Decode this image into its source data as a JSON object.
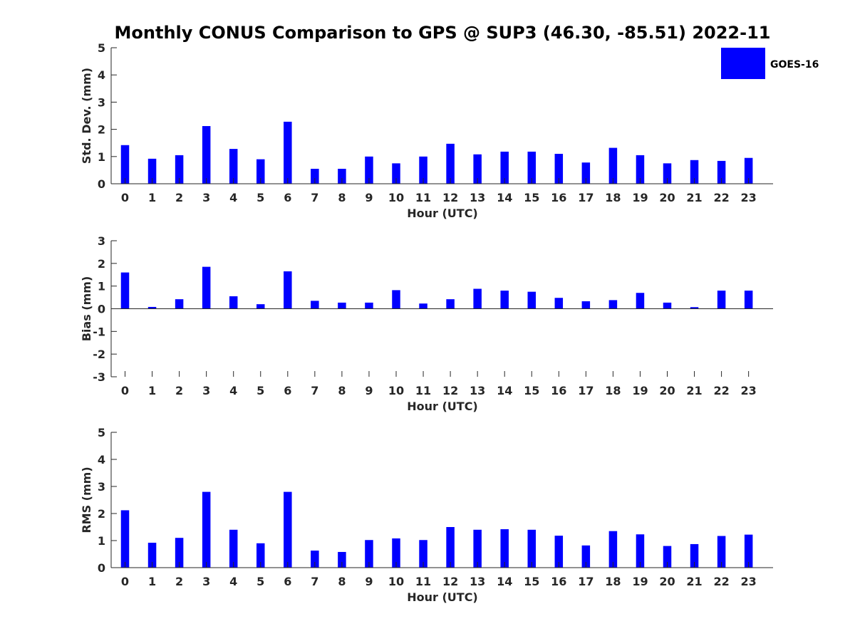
{
  "title": "Monthly CONUS Comparison to GPS @ SUP3 (46.30, -85.51) 2022-11",
  "bar_color": "#0000ff",
  "legend": {
    "label": "GOES-16",
    "placement": "top-right"
  },
  "chart_data": [
    {
      "type": "bar",
      "xlabel": "Hour (UTC)",
      "ylabel": "Std. Dev. (mm)",
      "ylim": [
        0,
        5
      ],
      "yticks": [
        "0",
        "1",
        "2",
        "3",
        "4",
        "5"
      ],
      "categories": [
        "0",
        "1",
        "2",
        "3",
        "4",
        "5",
        "6",
        "7",
        "8",
        "9",
        "10",
        "11",
        "12",
        "13",
        "14",
        "15",
        "16",
        "17",
        "18",
        "19",
        "20",
        "21",
        "22",
        "23"
      ],
      "series": [
        {
          "name": "GOES-16",
          "values": [
            1.42,
            0.92,
            1.05,
            2.12,
            1.28,
            0.9,
            2.28,
            0.55,
            0.55,
            1.0,
            0.75,
            1.0,
            1.47,
            1.08,
            1.18,
            1.18,
            1.1,
            0.78,
            1.32,
            1.05,
            0.75,
            0.87,
            0.84,
            0.95
          ]
        }
      ]
    },
    {
      "type": "bar",
      "xlabel": "Hour (UTC)",
      "ylabel": "Bias (mm)",
      "ylim": [
        -3,
        3
      ],
      "yticks": [
        "-3",
        "-2",
        "-1",
        "0",
        "1",
        "2",
        "3"
      ],
      "categories": [
        "0",
        "1",
        "2",
        "3",
        "4",
        "5",
        "6",
        "7",
        "8",
        "9",
        "10",
        "11",
        "12",
        "13",
        "14",
        "15",
        "16",
        "17",
        "18",
        "19",
        "20",
        "21",
        "22",
        "23"
      ],
      "series": [
        {
          "name": "GOES-16",
          "values": [
            1.6,
            0.08,
            0.42,
            1.85,
            0.55,
            0.2,
            1.65,
            0.35,
            0.27,
            0.27,
            0.82,
            0.23,
            0.42,
            0.88,
            0.8,
            0.75,
            0.48,
            0.33,
            0.38,
            0.7,
            0.27,
            0.07,
            0.8,
            0.8
          ]
        }
      ]
    },
    {
      "type": "bar",
      "xlabel": "Hour (UTC)",
      "ylabel": "RMS (mm)",
      "ylim": [
        0,
        5
      ],
      "yticks": [
        "0",
        "1",
        "2",
        "3",
        "4",
        "5"
      ],
      "categories": [
        "0",
        "1",
        "2",
        "3",
        "4",
        "5",
        "6",
        "7",
        "8",
        "9",
        "10",
        "11",
        "12",
        "13",
        "14",
        "15",
        "16",
        "17",
        "18",
        "19",
        "20",
        "21",
        "22",
        "23"
      ],
      "series": [
        {
          "name": "GOES-16",
          "values": [
            2.12,
            0.92,
            1.1,
            2.8,
            1.4,
            0.9,
            2.8,
            0.63,
            0.58,
            1.02,
            1.08,
            1.02,
            1.5,
            1.4,
            1.42,
            1.4,
            1.18,
            0.82,
            1.35,
            1.23,
            0.8,
            0.87,
            1.17,
            1.22
          ]
        }
      ]
    }
  ]
}
